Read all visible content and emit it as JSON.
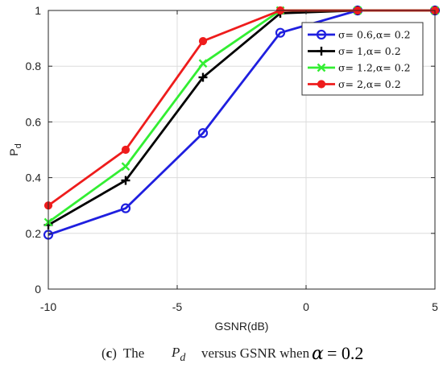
{
  "chart_data": {
    "type": "line",
    "xlabel": "GSNR(dB)",
    "ylabel": "P",
    "ylabel_sub": "d",
    "xlim": [
      -10,
      5
    ],
    "ylim": [
      0,
      1
    ],
    "xticks": [
      -10,
      -5,
      0,
      5
    ],
    "yticks": [
      0,
      0.2,
      0.4,
      0.6,
      0.8,
      1
    ],
    "grid": true,
    "legend_position": "top-right",
    "x": [
      -10,
      -7,
      -4,
      -1,
      2,
      5
    ],
    "series": [
      {
        "name": "σ= 0.6,α= 0.2",
        "color": "#1f1fdf",
        "marker": "circle-open",
        "values": [
          0.195,
          0.29,
          0.56,
          0.92,
          1.0,
          1.0
        ]
      },
      {
        "name": "σ= 1,α= 0.2",
        "color": "#000000",
        "marker": "plus",
        "values": [
          0.23,
          0.39,
          0.76,
          0.99,
          1.0,
          1.0
        ]
      },
      {
        "name": "σ= 1.2,α= 0.2",
        "color": "#33ee33",
        "marker": "x",
        "values": [
          0.24,
          0.44,
          0.81,
          1.0,
          1.0,
          1.0
        ]
      },
      {
        "name": "σ= 2,α= 0.2",
        "color": "#ee1c1c",
        "marker": "circle-filled",
        "values": [
          0.3,
          0.5,
          0.89,
          1.0,
          1.0,
          1.0
        ]
      }
    ]
  },
  "caption": {
    "label": "c",
    "prefix": "The",
    "symbol": "P",
    "symbol_sub": "d",
    "middle": "versus GSNR when",
    "alpha": "α",
    "equals": "= 0.2"
  }
}
